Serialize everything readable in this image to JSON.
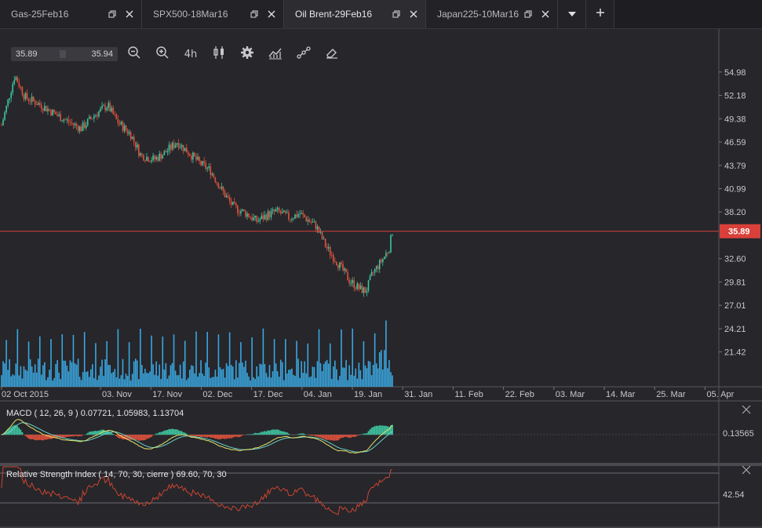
{
  "tabs": [
    {
      "label": "Gas-25Feb16",
      "active": false
    },
    {
      "label": "SPX500-18Mar16",
      "active": false
    },
    {
      "label": "Oil Brent-29Feb16",
      "active": true
    },
    {
      "label": "Japan225-10Mar16",
      "active": false
    }
  ],
  "tab_buttons": [
    {
      "icon": "chevron-down-icon"
    },
    {
      "icon": "plus-icon"
    }
  ],
  "price_box": {
    "bid": "35.89",
    "ask": "35.94"
  },
  "toolbar": [
    {
      "icon": "zoom-out-icon"
    },
    {
      "icon": "zoom-in-icon"
    },
    {
      "icon": "timeframe-4h-icon",
      "label": "4h"
    },
    {
      "icon": "candlestick-icon"
    },
    {
      "icon": "gear-icon"
    },
    {
      "icon": "indicators-icon"
    },
    {
      "icon": "draw-line-icon"
    },
    {
      "icon": "eraser-icon"
    }
  ],
  "current_price_label": "35.89",
  "colors": {
    "background": "#26262b",
    "up": "#3ec5a0",
    "down": "#e0513b",
    "price_line": "#d9403a",
    "volume": "#3aa7e0",
    "macd_line": "#e6e26a",
    "signal_line": "#6bd2c6",
    "rsi_line": "#c9452f"
  },
  "macd_panel": {
    "title": "MACD ( 12, 26, 9 ) 0.07721, 1.05983, 1.13704",
    "axis_label": "0.13565"
  },
  "rsi_panel": {
    "title": "Relative Strength Index ( 14, 70, 30, cierre ) 69.60, 70, 30",
    "axis_label": "42.54"
  },
  "chart_data": {
    "type": "candlestick",
    "y_axis_ticks": [
      "54.98",
      "52.18",
      "49.38",
      "46.59",
      "43.79",
      "40.99",
      "38.20",
      "32.60",
      "29.81",
      "27.01",
      "24.21",
      "21.42"
    ],
    "x_axis_ticks": [
      "02 Oct 2015",
      "03. Nov",
      "17. Nov",
      "02. Dec",
      "17. Dec",
      "04. Jan",
      "19. Jan",
      "31. Jan",
      "11. Feb",
      "22. Feb",
      "03. Mar",
      "14. Mar",
      "25. Mar",
      "05. Apr"
    ],
    "ylim": [
      19.5,
      57.5
    ],
    "current_price": 35.89,
    "close_series": [
      {
        "date": "02 Oct 2015",
        "close": 48.6
      },
      {
        "date": "06 Oct 2015",
        "close": 54.6
      },
      {
        "date": "09 Oct 2015",
        "close": 52.0
      },
      {
        "date": "14 Oct 2015",
        "close": 51.0
      },
      {
        "date": "20 Oct 2015",
        "close": 49.5
      },
      {
        "date": "26 Oct 2015",
        "close": 48.2
      },
      {
        "date": "30 Oct 2015",
        "close": 49.8
      },
      {
        "date": "03 Nov 2015",
        "close": 51.0
      },
      {
        "date": "06 Nov 2015",
        "close": 49.0
      },
      {
        "date": "10 Nov 2015",
        "close": 47.5
      },
      {
        "date": "13 Nov 2015",
        "close": 45.0
      },
      {
        "date": "17 Nov 2015",
        "close": 44.5
      },
      {
        "date": "20 Nov 2015",
        "close": 45.2
      },
      {
        "date": "24 Nov 2015",
        "close": 46.6
      },
      {
        "date": "27 Nov 2015",
        "close": 45.5
      },
      {
        "date": "01 Dec 2015",
        "close": 44.0
      },
      {
        "date": "04 Dec 2015",
        "close": 43.2
      },
      {
        "date": "08 Dec 2015",
        "close": 40.5
      },
      {
        "date": "11 Dec 2015",
        "close": 38.8
      },
      {
        "date": "15 Dec 2015",
        "close": 38.0
      },
      {
        "date": "18 Dec 2015",
        "close": 37.1
      },
      {
        "date": "21 Dec 2015",
        "close": 37.8
      },
      {
        "date": "24 Dec 2015",
        "close": 38.3
      },
      {
        "date": "28 Dec 2015",
        "close": 37.5
      },
      {
        "date": "31 Dec 2015",
        "close": 38.0
      },
      {
        "date": "05 Jan 2016",
        "close": 36.5
      },
      {
        "date": "08 Jan 2016",
        "close": 34.0
      },
      {
        "date": "12 Jan 2016",
        "close": 31.8
      },
      {
        "date": "15 Jan 2016",
        "close": 30.0
      },
      {
        "date": "18 Jan 2016",
        "close": 29.0
      },
      {
        "date": "20 Jan 2016",
        "close": 28.7
      },
      {
        "date": "22 Jan 2016",
        "close": 30.8
      },
      {
        "date": "25 Jan 2016",
        "close": 32.5
      },
      {
        "date": "27 Jan 2016",
        "close": 33.8
      },
      {
        "date": "28 Jan 2016",
        "close": 35.9
      }
    ]
  }
}
